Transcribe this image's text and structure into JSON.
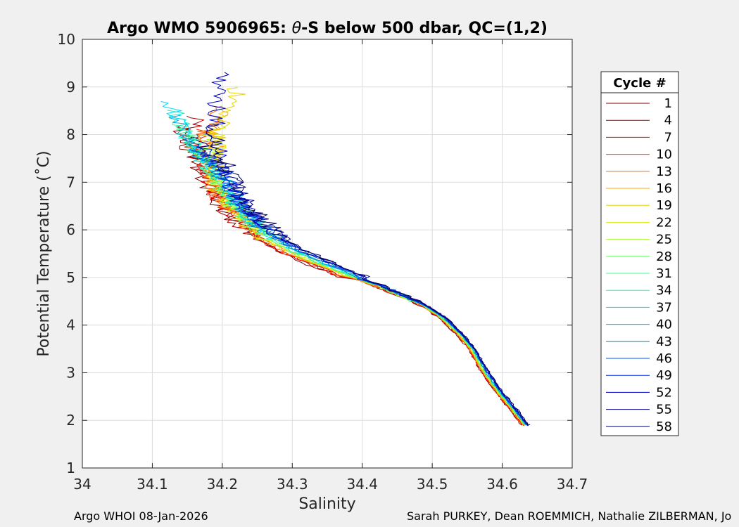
{
  "chart_data": {
    "type": "line",
    "title": "Argo WMO 5906965: θ-S below 500 dbar,  QC=(1,2)",
    "title_prefix": "Argo WMO 5906965: ",
    "title_theta": "θ",
    "title_suffix": "-S below 500 dbar,  QC=(1,2)",
    "xlabel": "Salinity",
    "ylabel": "Potential Temperature (˚C)",
    "xlim": [
      34.0,
      34.7
    ],
    "ylim": [
      1,
      10
    ],
    "xticks": [
      "34",
      "34.1",
      "34.2",
      "34.3",
      "34.4",
      "34.5",
      "34.6",
      "34.7"
    ],
    "xtick_values": [
      34.0,
      34.1,
      34.2,
      34.3,
      34.4,
      34.5,
      34.6,
      34.7
    ],
    "yticks": [
      "1",
      "2",
      "3",
      "4",
      "5",
      "6",
      "7",
      "8",
      "9",
      "10"
    ],
    "ytick_values": [
      1,
      2,
      3,
      4,
      5,
      6,
      7,
      8,
      9,
      10
    ],
    "grid": true,
    "legend_title": "Cycle #",
    "legend_position": "right-outside",
    "colors": [
      "#800000",
      "#b00000",
      "#e00000",
      "#ff2a00",
      "#ff6a00",
      "#ffaa00",
      "#e8d400",
      "#d8f000",
      "#a8ff30",
      "#60ff60",
      "#40ff90",
      "#20f0c0",
      "#00d8ff",
      "#00a8e0",
      "#0080b0",
      "#0050ff",
      "#0028e0",
      "#0000c0",
      "#00008c",
      "#000060"
    ],
    "legend_entries": [
      "1",
      "4",
      "7",
      "10",
      "13",
      "16",
      "19",
      "22",
      "25",
      "28",
      "31",
      "34",
      "37",
      "40",
      "43",
      "46",
      "49",
      "52",
      "55",
      "58"
    ],
    "mean_curve": {
      "s": [
        34.633,
        34.612,
        34.59,
        34.572,
        34.557,
        34.54,
        34.515,
        34.49,
        34.46,
        34.42,
        34.38,
        34.34,
        34.3,
        34.27,
        34.245,
        34.22,
        34.2,
        34.185,
        34.17
      ],
      "theta": [
        1.9,
        2.3,
        2.7,
        3.1,
        3.5,
        3.8,
        4.15,
        4.4,
        4.6,
        4.85,
        5.05,
        5.3,
        5.55,
        5.8,
        6.1,
        6.45,
        6.9,
        7.4,
        8.0
      ]
    },
    "cycle_top_points": {
      "s": [
        34.16,
        34.18,
        34.17,
        34.19,
        34.2,
        34.22,
        34.23,
        34.2,
        34.18,
        34.16,
        34.14,
        34.13,
        34.12,
        34.125,
        34.14,
        34.15,
        34.16,
        34.18,
        34.15,
        34.17
      ],
      "theta": [
        8.2,
        8.4,
        8.0,
        8.1,
        8.6,
        8.5,
        9.0,
        8.2,
        8.0,
        7.9,
        8.3,
        8.5,
        8.7,
        8.4,
        8.0,
        7.7,
        7.8,
        9.3,
        7.9,
        8.2
      ]
    }
  },
  "footer": {
    "left": "Argo WHOI 08-Jan-2026",
    "right": "Sarah PURKEY, Dean ROEMMICH, Nathalie ZILBERMAN, Jo"
  }
}
